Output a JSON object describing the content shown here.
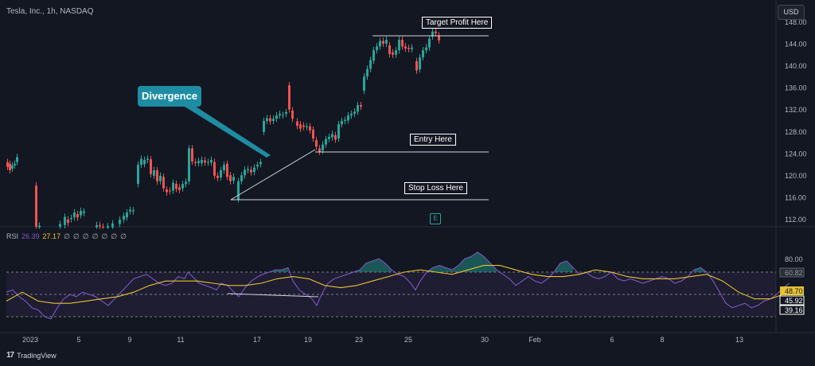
{
  "header": {
    "symbol_line": "Tesla, Inc., 1h, NASDAQ",
    "currency": "USD"
  },
  "annotations": {
    "divergence": "Divergence",
    "target": "Target Profit Here",
    "entry": "Entry Here",
    "stop": "Stop Loss Here",
    "earnings_marker": "E"
  },
  "rsi_header": {
    "name": "RSI",
    "value1": "26.39",
    "value2": "27.17",
    "zeros": [
      "∅",
      "∅",
      "∅",
      "∅",
      "∅",
      "∅",
      "∅"
    ]
  },
  "footer": {
    "brand": "TradingView"
  },
  "colors": {
    "up": "#26a69a",
    "down": "#ef5350",
    "rsi": "#7e57c2",
    "rsi_ma": "#e8c22f",
    "accent": "#1e8da3"
  },
  "chart_data": {
    "type": "candlestick",
    "price_axis": {
      "ticks": [
        "148.00",
        "144.00",
        "140.00",
        "136.00",
        "132.00",
        "128.00",
        "124.00",
        "120.00",
        "116.00",
        "112.00"
      ],
      "range": [
        110.5,
        149.5
      ]
    },
    "x_axis_labels": [
      "2023",
      "5",
      "9",
      "11",
      "17",
      "19",
      "23",
      "25",
      "30",
      "Feb",
      "6",
      "8",
      "13"
    ],
    "candles": [
      [
        0,
        122.5,
        121.6
      ],
      [
        3,
        122.2,
        121.0
      ],
      [
        6,
        121.3,
        121.9
      ],
      [
        9,
        121.9,
        122.2
      ],
      [
        12,
        122.5,
        123.4
      ],
      [
        36,
        118.2,
        110.7
      ],
      [
        40,
        110.6,
        110.9
      ],
      [
        66,
        110.7,
        111.2
      ],
      [
        72,
        111.0,
        112.5
      ],
      [
        76,
        112.0,
        111.4
      ],
      [
        80,
        112.1,
        112.3
      ],
      [
        84,
        112.4,
        113.3
      ],
      [
        88,
        113.0,
        112.4
      ],
      [
        92,
        112.8,
        113.6
      ],
      [
        96,
        113.2,
        113.5
      ],
      [
        112,
        110.6,
        111.0
      ],
      [
        116,
        111.0,
        110.8
      ],
      [
        120,
        110.7,
        110.6
      ],
      [
        126,
        110.5,
        110.8
      ],
      [
        132,
        110.6,
        111.3
      ],
      [
        141,
        111.2,
        112.0
      ],
      [
        146,
        112.0,
        112.7
      ],
      [
        150,
        112.4,
        113.3
      ],
      [
        154,
        113.5,
        113.8
      ],
      [
        158,
        113.5,
        113.7
      ],
      [
        164,
        118.5,
        122.0
      ],
      [
        168,
        122.0,
        123.1
      ],
      [
        172,
        122.1,
        122.9
      ],
      [
        176,
        122.9,
        123.1
      ],
      [
        180,
        123.0,
        120.3
      ],
      [
        184,
        120.0,
        121.0
      ],
      [
        188,
        121.0,
        119.0
      ],
      [
        192,
        119.0,
        120.0
      ],
      [
        196,
        119.8,
        117.7
      ],
      [
        200,
        117.5,
        117.0
      ],
      [
        204,
        117.3,
        117.2
      ],
      [
        208,
        117.3,
        118.7
      ],
      [
        212,
        118.5,
        117.6
      ],
      [
        216,
        117.9,
        117.4
      ],
      [
        220,
        117.7,
        118.5
      ],
      [
        224,
        118.5,
        118.9
      ],
      [
        228,
        119.0,
        125.0
      ],
      [
        232,
        125.0,
        122.6
      ],
      [
        236,
        122.5,
        122.3
      ],
      [
        240,
        122.3,
        122.7
      ],
      [
        244,
        122.3,
        122.9
      ],
      [
        248,
        122.8,
        122.4
      ],
      [
        252,
        122.4,
        122.5
      ],
      [
        256,
        122.4,
        122.9
      ],
      [
        260,
        122.5,
        120.0
      ],
      [
        264,
        120.0,
        119.6
      ],
      [
        268,
        119.7,
        121.0
      ],
      [
        272,
        121.0,
        122.0
      ],
      [
        276,
        122.2,
        119.8
      ],
      [
        280,
        120.1,
        119.0
      ],
      [
        284,
        119.1,
        119.8
      ],
      [
        290,
        115.7,
        119.0
      ],
      [
        294,
        119.0,
        120.1
      ],
      [
        298,
        120.1,
        121.1
      ],
      [
        302,
        121.0,
        121.2
      ],
      [
        306,
        121.1,
        120.6
      ],
      [
        310,
        120.7,
        121.5
      ],
      [
        314,
        121.7,
        122.0
      ],
      [
        318,
        122.1,
        122.5
      ],
      [
        322,
        128.0,
        130.0
      ],
      [
        326,
        130.0,
        130.5
      ],
      [
        330,
        130.5,
        129.9
      ],
      [
        334,
        130.0,
        130.4
      ],
      [
        338,
        130.4,
        131.0
      ],
      [
        342,
        131.0,
        131.3
      ],
      [
        346,
        131.0,
        131.1
      ],
      [
        350,
        131.3,
        131.6
      ],
      [
        354,
        136.5,
        132.1
      ],
      [
        358,
        131.9,
        130.4
      ],
      [
        364,
        129.9,
        129.1
      ],
      [
        368,
        129.4,
        128.6
      ],
      [
        372,
        129.2,
        128.9
      ],
      [
        376,
        128.9,
        129.0
      ],
      [
        380,
        129.0,
        128.3
      ],
      [
        384,
        128.4,
        126.8
      ],
      [
        388,
        126.5,
        125.3
      ],
      [
        392,
        125.0,
        124.4
      ],
      [
        396,
        124.6,
        125.7
      ],
      [
        400,
        125.7,
        126.7
      ],
      [
        404,
        126.7,
        127.1
      ],
      [
        408,
        127.0,
        127.6
      ],
      [
        412,
        127.4,
        126.6
      ],
      [
        416,
        126.8,
        129.4
      ],
      [
        420,
        129.4,
        130.0
      ],
      [
        424,
        130.0,
        130.2
      ],
      [
        428,
        130.1,
        131.0
      ],
      [
        432,
        131.0,
        131.3
      ],
      [
        436,
        131.3,
        131.7
      ],
      [
        440,
        131.7,
        132.9
      ],
      [
        444,
        132.9,
        132.6
      ],
      [
        448,
        135.5,
        138.1
      ],
      [
        452,
        138.1,
        139.5
      ],
      [
        456,
        139.5,
        141.1
      ],
      [
        460,
        141.0,
        142.9
      ],
      [
        464,
        142.9,
        143.6
      ],
      [
        468,
        143.6,
        144.6
      ],
      [
        472,
        144.6,
        144.1
      ],
      [
        476,
        144.1,
        144.8
      ],
      [
        480,
        143.8,
        142.2
      ],
      [
        484,
        142.5,
        142.1
      ],
      [
        488,
        142.1,
        142.9
      ],
      [
        492,
        142.9,
        144.8
      ],
      [
        496,
        144.8,
        143.6
      ],
      [
        500,
        143.6,
        143.2
      ],
      [
        504,
        143.3,
        143.1
      ],
      [
        508,
        143.1,
        143.4
      ],
      [
        514,
        140.9,
        139.2
      ],
      [
        518,
        139.4,
        141.6
      ],
      [
        522,
        141.6,
        142.9
      ],
      [
        526,
        142.9,
        143.4
      ],
      [
        530,
        143.4,
        145.0
      ],
      [
        534,
        145.4,
        146.3
      ],
      [
        538,
        146.3,
        146.0
      ],
      [
        542,
        145.6,
        144.7
      ]
    ],
    "rsi": {
      "levels": [
        80,
        70,
        50,
        30
      ],
      "labels": [
        "80.00",
        "60.82",
        "48.70",
        "45.92",
        "39.16"
      ],
      "rsi_series": [
        [
          0,
          52
        ],
        [
          8,
          54
        ],
        [
          16,
          48
        ],
        [
          24,
          44
        ],
        [
          32,
          38
        ],
        [
          40,
          36
        ],
        [
          48,
          30
        ],
        [
          56,
          28
        ],
        [
          64,
          38
        ],
        [
          72,
          46
        ],
        [
          80,
          50
        ],
        [
          88,
          48
        ],
        [
          96,
          52
        ],
        [
          104,
          50
        ],
        [
          112,
          48
        ],
        [
          120,
          44
        ],
        [
          128,
          40
        ],
        [
          136,
          46
        ],
        [
          144,
          52
        ],
        [
          152,
          58
        ],
        [
          160,
          64
        ],
        [
          168,
          66
        ],
        [
          176,
          68
        ],
        [
          184,
          64
        ],
        [
          192,
          60
        ],
        [
          200,
          58
        ],
        [
          208,
          60
        ],
        [
          216,
          66
        ],
        [
          224,
          64
        ],
        [
          228,
          70
        ],
        [
          234,
          66
        ],
        [
          242,
          60
        ],
        [
          250,
          58
        ],
        [
          258,
          56
        ],
        [
          264,
          54
        ],
        [
          270,
          60
        ],
        [
          278,
          58
        ],
        [
          286,
          52
        ],
        [
          292,
          48
        ],
        [
          300,
          56
        ],
        [
          308,
          62
        ],
        [
          316,
          66
        ],
        [
          322,
          68
        ],
        [
          330,
          70
        ],
        [
          338,
          72
        ],
        [
          346,
          72
        ],
        [
          354,
          74
        ],
        [
          360,
          62
        ],
        [
          368,
          54
        ],
        [
          376,
          50
        ],
        [
          384,
          46
        ],
        [
          390,
          40
        ],
        [
          396,
          50
        ],
        [
          404,
          60
        ],
        [
          412,
          64
        ],
        [
          420,
          66
        ],
        [
          428,
          68
        ],
        [
          436,
          70
        ],
        [
          444,
          72
        ],
        [
          452,
          78
        ],
        [
          460,
          80
        ],
        [
          468,
          82
        ],
        [
          476,
          78
        ],
        [
          484,
          72
        ],
        [
          492,
          68
        ],
        [
          500,
          66
        ],
        [
          508,
          60
        ],
        [
          514,
          54
        ],
        [
          520,
          62
        ],
        [
          528,
          70
        ],
        [
          536,
          74
        ],
        [
          544,
          76
        ],
        [
          552,
          74
        ],
        [
          560,
          72
        ],
        [
          568,
          76
        ],
        [
          576,
          82
        ],
        [
          584,
          84
        ],
        [
          592,
          88
        ],
        [
          600,
          84
        ],
        [
          608,
          78
        ],
        [
          616,
          72
        ],
        [
          624,
          68
        ],
        [
          632,
          64
        ],
        [
          640,
          58
        ],
        [
          648,
          62
        ],
        [
          656,
          66
        ],
        [
          664,
          62
        ],
        [
          672,
          60
        ],
        [
          680,
          64
        ],
        [
          688,
          70
        ],
        [
          696,
          78
        ],
        [
          704,
          80
        ],
        [
          712,
          74
        ],
        [
          720,
          68
        ],
        [
          728,
          70
        ],
        [
          736,
          66
        ],
        [
          744,
          64
        ],
        [
          752,
          66
        ],
        [
          760,
          70
        ],
        [
          768,
          64
        ],
        [
          776,
          62
        ],
        [
          784,
          64
        ],
        [
          792,
          62
        ],
        [
          800,
          60
        ],
        [
          808,
          62
        ],
        [
          816,
          64
        ],
        [
          824,
          66
        ],
        [
          832,
          64
        ],
        [
          840,
          60
        ],
        [
          848,
          62
        ],
        [
          856,
          66
        ],
        [
          864,
          72
        ],
        [
          872,
          74
        ],
        [
          880,
          70
        ],
        [
          888,
          62
        ],
        [
          896,
          52
        ],
        [
          904,
          42
        ],
        [
          912,
          38
        ],
        [
          920,
          40
        ],
        [
          928,
          42
        ],
        [
          936,
          38
        ],
        [
          944,
          40
        ],
        [
          952,
          44
        ],
        [
          960,
          46
        ],
        [
          968,
          50
        ],
        [
          976,
          56
        ],
        [
          984,
          60
        ]
      ],
      "ma_series": [
        [
          0,
          44
        ],
        [
          20,
          52
        ],
        [
          40,
          44
        ],
        [
          60,
          42
        ],
        [
          80,
          42
        ],
        [
          100,
          44
        ],
        [
          120,
          46
        ],
        [
          140,
          48
        ],
        [
          160,
          52
        ],
        [
          180,
          58
        ],
        [
          200,
          62
        ],
        [
          220,
          62
        ],
        [
          240,
          62
        ],
        [
          260,
          60
        ],
        [
          280,
          58
        ],
        [
          300,
          58
        ],
        [
          320,
          60
        ],
        [
          340,
          64
        ],
        [
          360,
          66
        ],
        [
          380,
          64
        ],
        [
          400,
          58
        ],
        [
          420,
          56
        ],
        [
          440,
          58
        ],
        [
          460,
          62
        ],
        [
          480,
          66
        ],
        [
          500,
          70
        ],
        [
          520,
          72
        ],
        [
          540,
          70
        ],
        [
          560,
          68
        ],
        [
          580,
          72
        ],
        [
          600,
          76
        ],
        [
          620,
          76
        ],
        [
          640,
          72
        ],
        [
          660,
          68
        ],
        [
          680,
          66
        ],
        [
          700,
          66
        ],
        [
          720,
          68
        ],
        [
          740,
          72
        ],
        [
          760,
          70
        ],
        [
          780,
          66
        ],
        [
          800,
          64
        ],
        [
          820,
          64
        ],
        [
          840,
          64
        ],
        [
          860,
          66
        ],
        [
          880,
          68
        ],
        [
          900,
          62
        ],
        [
          920,
          52
        ],
        [
          940,
          46
        ],
        [
          960,
          46
        ],
        [
          984,
          52
        ]
      ]
    }
  }
}
